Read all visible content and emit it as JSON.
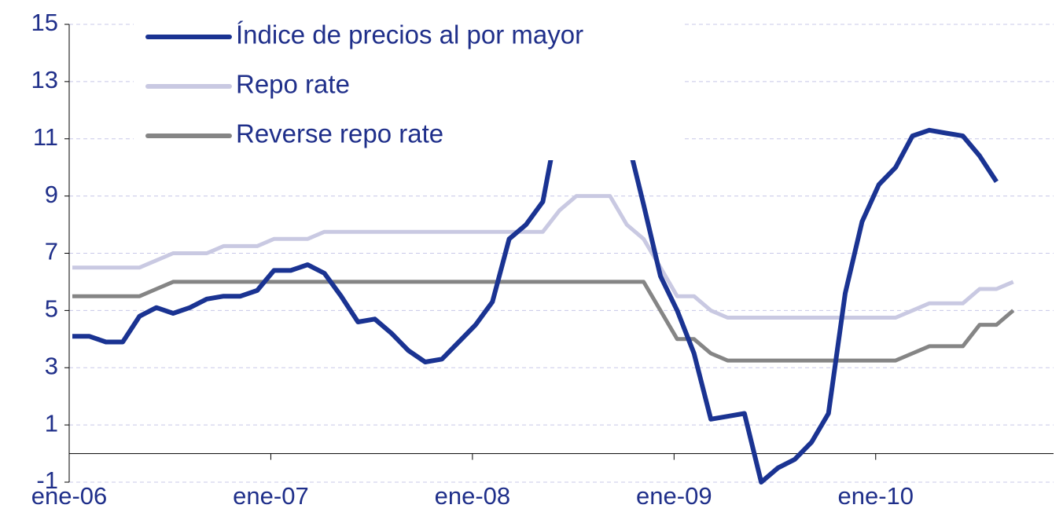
{
  "chart_data": {
    "type": "line",
    "categories": [
      "ene-06",
      null,
      null,
      null,
      null,
      null,
      null,
      null,
      null,
      null,
      null,
      null,
      "ene-07",
      null,
      null,
      null,
      null,
      null,
      null,
      null,
      null,
      null,
      null,
      null,
      "ene-08",
      null,
      null,
      null,
      null,
      null,
      null,
      null,
      null,
      null,
      null,
      null,
      "ene-09",
      null,
      null,
      null,
      null,
      null,
      null,
      null,
      null,
      null,
      null,
      null,
      "ene-10",
      null,
      null,
      null,
      null,
      null,
      null,
      null,
      null
    ],
    "series": [
      {
        "name": "Índice de precios al por mayor",
        "color": "#1a3392",
        "values": [
          4.1,
          4.1,
          3.9,
          3.9,
          4.8,
          5.1,
          4.9,
          5.1,
          5.4,
          5.5,
          5.5,
          5.7,
          6.4,
          6.4,
          6.6,
          6.3,
          5.5,
          4.6,
          4.7,
          4.2,
          3.6,
          3.2,
          3.3,
          3.9,
          4.5,
          5.3,
          7.5,
          8.0,
          8.8,
          11.9,
          12.4,
          12.8,
          12.3,
          11.1,
          8.7,
          6.2,
          5.0,
          3.5,
          1.2,
          1.3,
          1.4,
          -1.0,
          -0.5,
          -0.2,
          0.4,
          1.4,
          5.6,
          8.1,
          9.4,
          10.0,
          11.1,
          11.3,
          11.2,
          11.1,
          10.4,
          9.5,
          null
        ]
      },
      {
        "name": "Repo rate",
        "color": "#c9c9e2",
        "values": [
          6.5,
          6.5,
          6.5,
          6.5,
          6.5,
          6.75,
          7.0,
          7.0,
          7.0,
          7.25,
          7.25,
          7.25,
          7.5,
          7.5,
          7.5,
          7.75,
          7.75,
          7.75,
          7.75,
          7.75,
          7.75,
          7.75,
          7.75,
          7.75,
          7.75,
          7.75,
          7.75,
          7.75,
          7.75,
          8.5,
          9.0,
          9.0,
          9.0,
          8.0,
          7.5,
          6.5,
          5.5,
          5.5,
          5.0,
          4.75,
          4.75,
          4.75,
          4.75,
          4.75,
          4.75,
          4.75,
          4.75,
          4.75,
          4.75,
          4.75,
          5.0,
          5.25,
          5.25,
          5.25,
          5.75,
          5.75,
          6.0
        ]
      },
      {
        "name": "Reverse repo rate",
        "color": "#858585",
        "values": [
          5.5,
          5.5,
          5.5,
          5.5,
          5.5,
          5.75,
          6.0,
          6.0,
          6.0,
          6.0,
          6.0,
          6.0,
          6.0,
          6.0,
          6.0,
          6.0,
          6.0,
          6.0,
          6.0,
          6.0,
          6.0,
          6.0,
          6.0,
          6.0,
          6.0,
          6.0,
          6.0,
          6.0,
          6.0,
          6.0,
          6.0,
          6.0,
          6.0,
          6.0,
          6.0,
          5.0,
          4.0,
          4.0,
          3.5,
          3.25,
          3.25,
          3.25,
          3.25,
          3.25,
          3.25,
          3.25,
          3.25,
          3.25,
          3.25,
          3.25,
          3.5,
          3.75,
          3.75,
          3.75,
          4.5,
          4.5,
          5.0
        ]
      }
    ],
    "ylim": [
      -1,
      15
    ],
    "yticks": [
      -1,
      1,
      3,
      5,
      7,
      9,
      11,
      13,
      15
    ],
    "grid": true,
    "legend": "top-left"
  }
}
